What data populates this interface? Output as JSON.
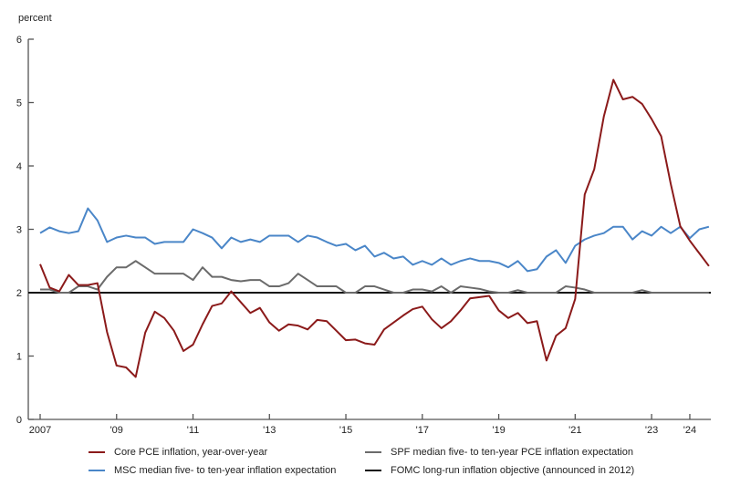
{
  "chart_data": {
    "type": "line",
    "title": "",
    "xlabel": "",
    "ylabel": "percent",
    "ylim": [
      0,
      6
    ],
    "yticks": [
      0,
      1,
      2,
      3,
      4,
      5,
      6
    ],
    "xtick_labels": [
      {
        "label": "2007",
        "q": 0
      },
      {
        "label": "'09",
        "q": 8
      },
      {
        "label": "'11",
        "q": 16
      },
      {
        "label": "'13",
        "q": 24
      },
      {
        "label": "'15",
        "q": 32
      },
      {
        "label": "'17",
        "q": 40
      },
      {
        "label": "'19",
        "q": 48
      },
      {
        "label": "'21",
        "q": 56
      },
      {
        "label": "'23",
        "q": 64
      },
      {
        "label": "'24",
        "q": 68
      }
    ],
    "x_start": "2007Q1",
    "x_frequency": "quarterly",
    "grid": false,
    "legend_position": "bottom",
    "series": [
      {
        "name": "Core PCE inflation, year-over-year",
        "color": "#8b1a1a",
        "values": [
          2.45,
          2.08,
          2.02,
          2.28,
          2.12,
          2.12,
          2.15,
          1.38,
          0.85,
          0.82,
          0.67,
          1.37,
          1.7,
          1.6,
          1.4,
          1.08,
          1.18,
          1.5,
          1.79,
          1.83,
          2.02,
          1.85,
          1.68,
          1.76,
          1.53,
          1.4,
          1.5,
          1.48,
          1.42,
          1.57,
          1.55,
          1.4,
          1.25,
          1.26,
          1.2,
          1.18,
          1.42,
          1.53,
          1.64,
          1.74,
          1.78,
          1.58,
          1.44,
          1.55,
          1.72,
          1.91,
          1.93,
          1.95,
          1.72,
          1.6,
          1.68,
          1.52,
          1.55,
          0.93,
          1.32,
          1.44,
          1.9,
          3.55,
          3.95,
          4.78,
          5.36,
          5.05,
          5.09,
          4.98,
          4.74,
          4.47,
          3.72,
          3.05,
          2.82,
          2.62,
          2.42
        ]
      },
      {
        "name": "MSC median five- to ten-year inflation expectation",
        "color": "#4a86c8",
        "values": [
          2.94,
          3.03,
          2.97,
          2.94,
          2.97,
          3.33,
          3.14,
          2.8,
          2.87,
          2.9,
          2.87,
          2.87,
          2.77,
          2.8,
          2.8,
          2.8,
          3.0,
          2.94,
          2.87,
          2.7,
          2.87,
          2.8,
          2.84,
          2.8,
          2.9,
          2.9,
          2.9,
          2.8,
          2.9,
          2.87,
          2.8,
          2.74,
          2.77,
          2.67,
          2.74,
          2.57,
          2.63,
          2.54,
          2.57,
          2.44,
          2.5,
          2.44,
          2.54,
          2.44,
          2.5,
          2.54,
          2.5,
          2.5,
          2.47,
          2.4,
          2.5,
          2.34,
          2.37,
          2.57,
          2.67,
          2.47,
          2.74,
          2.84,
          2.9,
          2.94,
          3.04,
          3.04,
          2.84,
          2.97,
          2.9,
          3.04,
          2.94,
          3.04,
          2.86,
          3.0,
          3.04
        ]
      },
      {
        "name": "SPF median five- to ten-year PCE inflation expectation",
        "color": "#6b6b6b",
        "values": [
          2.05,
          2.05,
          2.0,
          2.0,
          2.1,
          2.1,
          2.05,
          2.25,
          2.4,
          2.4,
          2.5,
          2.4,
          2.3,
          2.3,
          2.3,
          2.3,
          2.2,
          2.4,
          2.25,
          2.25,
          2.2,
          2.18,
          2.2,
          2.2,
          2.1,
          2.1,
          2.15,
          2.3,
          2.2,
          2.1,
          2.1,
          2.1,
          2.0,
          2.0,
          2.1,
          2.1,
          2.05,
          2.0,
          2.0,
          2.05,
          2.05,
          2.02,
          2.1,
          2.0,
          2.1,
          2.08,
          2.06,
          2.02,
          2.0,
          2.0,
          2.04,
          2.0,
          2.0,
          2.0,
          2.0,
          2.1,
          2.08,
          2.05,
          2.0,
          2.0,
          2.0,
          2.0,
          2.0,
          2.04,
          2.0,
          2.0,
          2.0,
          2.0,
          2.0,
          2.0,
          2.0
        ]
      },
      {
        "name": "FOMC long-run inflation objective (announced in 2012)",
        "color": "#111111",
        "values": [
          2,
          2,
          2,
          2,
          2,
          2,
          2,
          2,
          2,
          2,
          2,
          2,
          2,
          2,
          2,
          2,
          2,
          2,
          2,
          2,
          2,
          2,
          2,
          2,
          2,
          2,
          2,
          2,
          2,
          2,
          2,
          2,
          2,
          2,
          2,
          2,
          2,
          2,
          2,
          2,
          2,
          2,
          2,
          2,
          2,
          2,
          2,
          2,
          2,
          2,
          2,
          2,
          2,
          2,
          2,
          2,
          2,
          2,
          2,
          2,
          2,
          2,
          2,
          2,
          2,
          2,
          2,
          2,
          2,
          2,
          2
        ]
      }
    ]
  },
  "legend": {
    "items": [
      {
        "label": "Core PCE inflation, year-over-year",
        "color": "#8b1a1a"
      },
      {
        "label": "MSC median five- to ten-year inflation expectation",
        "color": "#4a86c8"
      },
      {
        "label": "SPF median five- to ten-year PCE inflation expectation",
        "color": "#6b6b6b"
      },
      {
        "label": "FOMC long-run inflation objective (announced in 2012)",
        "color": "#111111"
      }
    ]
  }
}
